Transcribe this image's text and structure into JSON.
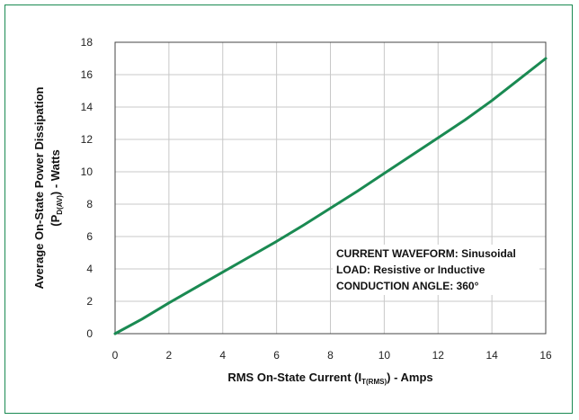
{
  "chart_data": {
    "type": "line",
    "title": "",
    "xlabel": {
      "before": "RMS On-State Current (I",
      "sub": "T(RMS)",
      "after": ") - Amps"
    },
    "ylabel": {
      "line1": "Average On-State Power Dissipation",
      "line2_before": "(P",
      "line2_sub": "D(AV)",
      "line2_after": ") - Watts"
    },
    "xlim": [
      0,
      16
    ],
    "ylim": [
      0,
      18
    ],
    "xticks": [
      0,
      2,
      4,
      6,
      8,
      10,
      12,
      14,
      16
    ],
    "yticks": [
      0,
      2,
      4,
      6,
      8,
      10,
      12,
      14,
      16,
      18
    ],
    "grid": true,
    "series": [
      {
        "color": "#1a8a52",
        "x": [
          0,
          1,
          2,
          3,
          4,
          5,
          6,
          7,
          8,
          9,
          10,
          11,
          12,
          13,
          14,
          15,
          16
        ],
        "y": [
          0,
          0.9,
          1.9,
          2.85,
          3.8,
          4.75,
          5.7,
          6.7,
          7.75,
          8.8,
          9.9,
          11.0,
          12.1,
          13.2,
          14.4,
          15.7,
          17.0
        ]
      }
    ],
    "annotations": [
      "CURRENT WAVEFORM:  Sinusoidal",
      "LOAD:  Resistive or Inductive",
      "CONDUCTION ANGLE:  360°"
    ]
  }
}
